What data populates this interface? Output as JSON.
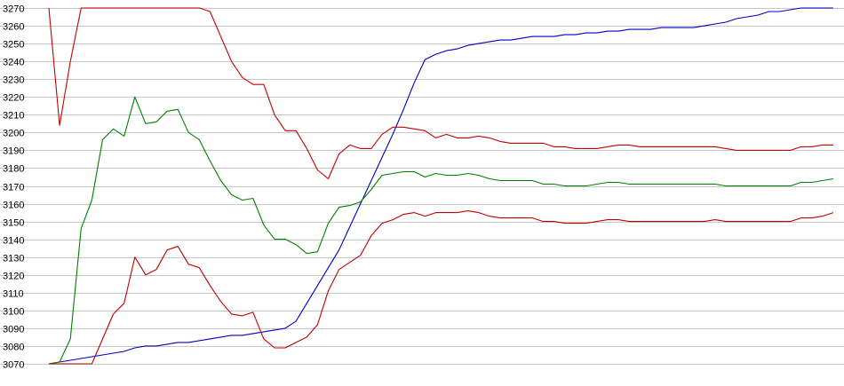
{
  "chart_data": {
    "type": "line",
    "title": "",
    "xlabel": "",
    "ylabel": "",
    "ylim": [
      3070,
      3270
    ],
    "xlim": [
      0,
      73
    ],
    "grid": true,
    "legend": "none",
    "y_ticks": [
      "3070",
      "3080",
      "3090",
      "3100",
      "3110",
      "3120",
      "3130",
      "3140",
      "3150",
      "3160",
      "3170",
      "3180",
      "3190",
      "3200",
      "3210",
      "3220",
      "3230",
      "3240",
      "3250",
      "3260",
      "3270"
    ],
    "series": [
      {
        "color": "#0000c0",
        "x": [
          0,
          1,
          2,
          3,
          4,
          5,
          6,
          7,
          8,
          9,
          10,
          11,
          12,
          13,
          14,
          15,
          16,
          17,
          18,
          19,
          20,
          21,
          22,
          23,
          24,
          25,
          26,
          27,
          28,
          29,
          30,
          31,
          32,
          33,
          34,
          35,
          36,
          37,
          38,
          39,
          40,
          41,
          42,
          43,
          44,
          45,
          46,
          47,
          48,
          49,
          50,
          51,
          52,
          53,
          54,
          55,
          56,
          57,
          58,
          59,
          60,
          61,
          62,
          63,
          64,
          65,
          66,
          67,
          68,
          69,
          70,
          71,
          72,
          73
        ],
        "values": [
          3070,
          3071,
          3072,
          3073,
          3074,
          3075,
          3076,
          3077,
          3079,
          3080,
          3080,
          3081,
          3082,
          3082,
          3083,
          3084,
          3085,
          3086,
          3086,
          3087,
          3088,
          3089,
          3090,
          3094,
          3104,
          3114,
          3124,
          3134,
          3147,
          3160,
          3173,
          3186,
          3199,
          3213,
          3228,
          3241,
          3244,
          3246,
          3247,
          3249,
          3250,
          3251,
          3252,
          3252,
          3253,
          3254,
          3254,
          3254,
          3255,
          3255,
          3256,
          3256,
          3257,
          3257,
          3258,
          3258,
          3258,
          3259,
          3259,
          3259,
          3259,
          3260,
          3261,
          3262,
          3264,
          3265,
          3266,
          3268,
          3268,
          3269,
          3270,
          3270,
          3270,
          3270
        ]
      },
      {
        "color": "#c00000",
        "x": [
          0,
          1,
          2,
          3,
          4,
          5,
          6,
          7,
          8,
          9,
          10,
          11,
          12,
          13,
          14,
          15,
          16,
          17,
          18,
          19,
          20,
          21,
          22,
          23,
          24,
          25,
          26,
          27,
          28,
          29,
          30,
          31,
          32,
          33,
          34,
          35,
          36,
          37,
          38,
          39,
          40,
          41,
          42,
          43,
          44,
          45,
          46,
          47,
          48,
          49,
          50,
          51,
          52,
          53,
          54,
          55,
          56,
          57,
          58,
          59,
          60,
          61,
          62,
          63,
          64,
          65,
          66,
          67,
          68,
          69,
          70,
          71,
          72,
          73
        ],
        "values": [
          3270,
          3204,
          3240,
          3270,
          3270,
          3270,
          3270,
          3270,
          3270,
          3270,
          3270,
          3270,
          3270,
          3270,
          3270,
          3268,
          3254,
          3240,
          3231,
          3227,
          3227,
          3210,
          3201,
          3201,
          3191,
          3179,
          3174,
          3188,
          3193,
          3191,
          3191,
          3199,
          3203,
          3203,
          3202,
          3201,
          3197,
          3199,
          3197,
          3197,
          3198,
          3197,
          3195,
          3194,
          3194,
          3194,
          3194,
          3192,
          3192,
          3191,
          3191,
          3191,
          3192,
          3193,
          3193,
          3192,
          3192,
          3192,
          3192,
          3192,
          3192,
          3192,
          3192,
          3191,
          3190,
          3190,
          3190,
          3190,
          3190,
          3190,
          3192,
          3192,
          3193,
          3193
        ]
      },
      {
        "color": "#008000",
        "x": [
          0,
          1,
          2,
          3,
          4,
          5,
          6,
          7,
          8,
          9,
          10,
          11,
          12,
          13,
          14,
          15,
          16,
          17,
          18,
          19,
          20,
          21,
          22,
          23,
          24,
          25,
          26,
          27,
          28,
          29,
          30,
          31,
          32,
          33,
          34,
          35,
          36,
          37,
          38,
          39,
          40,
          41,
          42,
          43,
          44,
          45,
          46,
          47,
          48,
          49,
          50,
          51,
          52,
          53,
          54,
          55,
          56,
          57,
          58,
          59,
          60,
          61,
          62,
          63,
          64,
          65,
          66,
          67,
          68,
          69,
          70,
          71,
          72,
          73
        ],
        "values": [
          3070,
          3071,
          3084,
          3146,
          3162,
          3196,
          3202,
          3198,
          3220,
          3205,
          3206,
          3212,
          3213,
          3200,
          3196,
          3184,
          3173,
          3165,
          3162,
          3163,
          3148,
          3140,
          3140,
          3137,
          3132,
          3133,
          3149,
          3158,
          3159,
          3161,
          3168,
          3176,
          3177,
          3178,
          3178,
          3175,
          3177,
          3176,
          3176,
          3177,
          3176,
          3174,
          3173,
          3173,
          3173,
          3173,
          3171,
          3171,
          3170,
          3170,
          3170,
          3171,
          3172,
          3172,
          3171,
          3171,
          3171,
          3171,
          3171,
          3171,
          3171,
          3171,
          3171,
          3170,
          3170,
          3170,
          3170,
          3170,
          3170,
          3170,
          3172,
          3172,
          3173,
          3174
        ]
      },
      {
        "color": "#c00000",
        "x": [
          0,
          1,
          2,
          3,
          4,
          5,
          6,
          7,
          8,
          9,
          10,
          11,
          12,
          13,
          14,
          15,
          16,
          17,
          18,
          19,
          20,
          21,
          22,
          23,
          24,
          25,
          26,
          27,
          28,
          29,
          30,
          31,
          32,
          33,
          34,
          35,
          36,
          37,
          38,
          39,
          40,
          41,
          42,
          43,
          44,
          45,
          46,
          47,
          48,
          49,
          50,
          51,
          52,
          53,
          54,
          55,
          56,
          57,
          58,
          59,
          60,
          61,
          62,
          63,
          64,
          65,
          66,
          67,
          68,
          69,
          70,
          71,
          72,
          73
        ],
        "values": [
          3070,
          3070,
          3070,
          3070,
          3070,
          3084,
          3098,
          3104,
          3130,
          3120,
          3123,
          3134,
          3136,
          3126,
          3124,
          3114,
          3105,
          3098,
          3097,
          3099,
          3084,
          3079,
          3079,
          3082,
          3085,
          3092,
          3111,
          3123,
          3127,
          3131,
          3142,
          3149,
          3151,
          3154,
          3155,
          3153,
          3155,
          3155,
          3155,
          3156,
          3155,
          3153,
          3152,
          3152,
          3152,
          3152,
          3150,
          3150,
          3149,
          3149,
          3149,
          3150,
          3151,
          3151,
          3150,
          3150,
          3150,
          3150,
          3150,
          3150,
          3150,
          3150,
          3151,
          3150,
          3150,
          3150,
          3150,
          3150,
          3150,
          3150,
          3152,
          3152,
          3153,
          3155
        ]
      }
    ]
  }
}
